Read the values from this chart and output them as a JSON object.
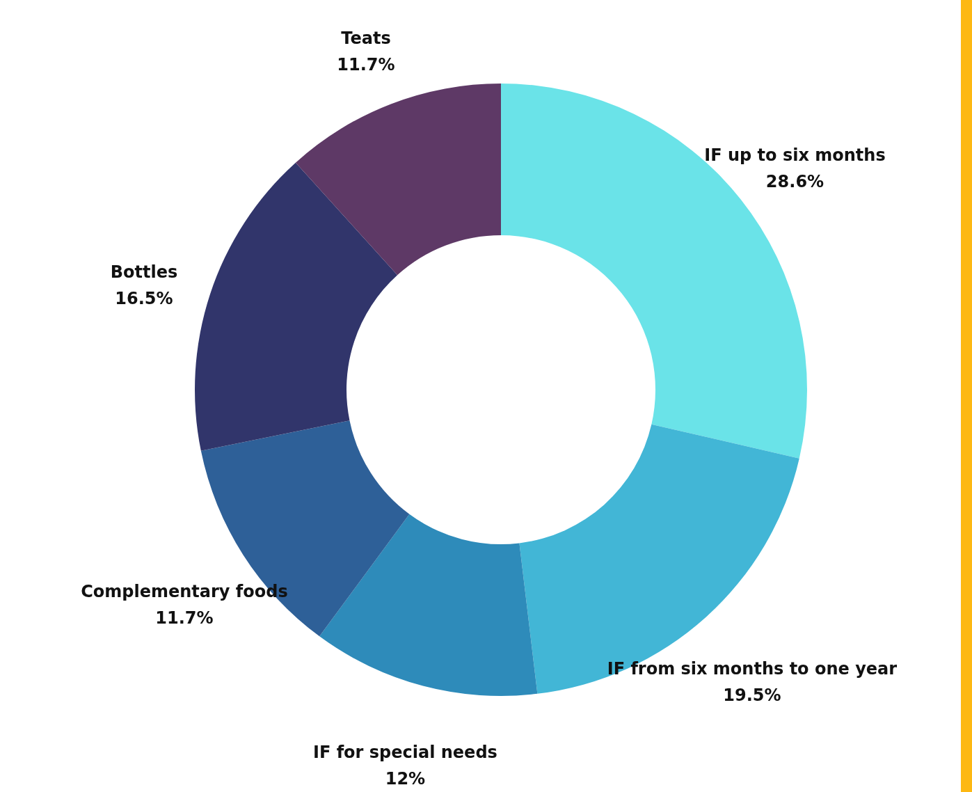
{
  "chart_data": {
    "type": "donut",
    "categories": [
      "IF up to six months",
      "IF from six months to one year",
      "IF for special needs",
      "Complementary foods",
      "Bottles",
      "Teats"
    ],
    "values": [
      28.6,
      19.5,
      12,
      11.7,
      16.5,
      11.7
    ],
    "value_labels": [
      "28.6%",
      "19.5%",
      "12%",
      "11.7%",
      "16.5%",
      "11.7%"
    ],
    "colors": [
      "#6ae3e8",
      "#42b6d6",
      "#2e8bba",
      "#2e6098",
      "#31356b",
      "#5e3966"
    ]
  }
}
